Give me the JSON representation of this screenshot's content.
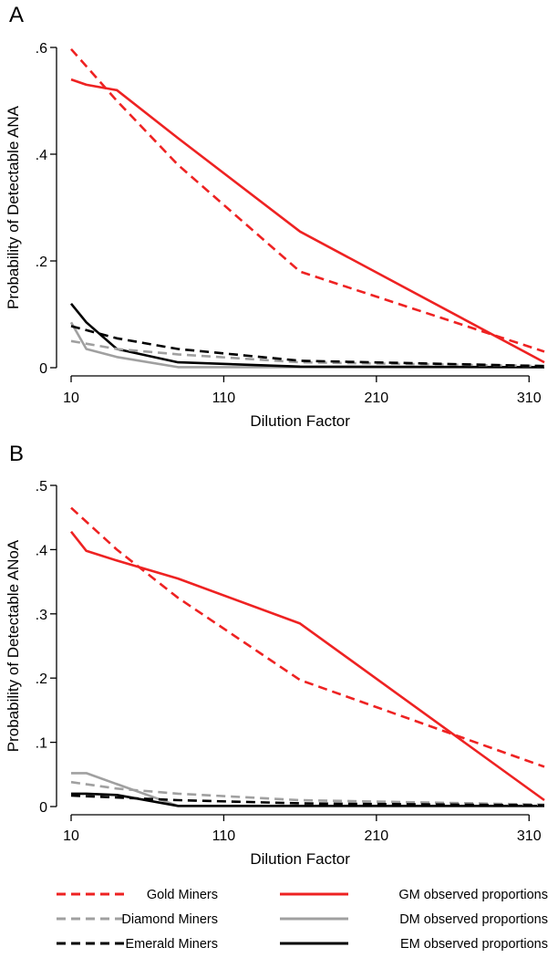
{
  "legend": [
    {
      "label": "Gold Miners",
      "color": "#ee2222",
      "dash": true
    },
    {
      "label": "GM observed proportions",
      "color": "#ee2222",
      "dash": false
    },
    {
      "label": "Diamond Miners",
      "color": "#a0a0a0",
      "dash": true
    },
    {
      "label": "DM observed proportions",
      "color": "#a0a0a0",
      "dash": false
    },
    {
      "label": "Emerald Miners",
      "color": "#000000",
      "dash": true
    },
    {
      "label": "EM observed proportions",
      "color": "#000000",
      "dash": false
    }
  ],
  "chart_data": [
    {
      "type": "line",
      "panel_label": "A",
      "xlabel": "Dilution Factor",
      "ylabel": "Probability of Detectable ANA",
      "xlim": [
        10,
        320
      ],
      "ylim": [
        0,
        0.6
      ],
      "xticks": [
        10,
        110,
        210,
        310
      ],
      "xtick_labels": [
        "10",
        "110",
        "210",
        "310"
      ],
      "yticks": [
        0,
        0.2,
        0.4,
        0.6
      ],
      "ytick_labels": [
        "0",
        ".2",
        ".4",
        ".6"
      ],
      "series": [
        {
          "name": "Gold Miners",
          "color": "#ee2222",
          "dash": true,
          "x": [
            10,
            40,
            80,
            160,
            320
          ],
          "y": [
            0.597,
            0.5,
            0.38,
            0.18,
            0.03
          ]
        },
        {
          "name": "Diamond Miners",
          "color": "#a0a0a0",
          "dash": true,
          "x": [
            10,
            40,
            80,
            160,
            320
          ],
          "y": [
            0.05,
            0.035,
            0.025,
            0.01,
            0.003
          ]
        },
        {
          "name": "Emerald Miners",
          "color": "#000000",
          "dash": true,
          "x": [
            10,
            40,
            80,
            160,
            320
          ],
          "y": [
            0.078,
            0.055,
            0.035,
            0.013,
            0.003
          ]
        },
        {
          "name": "GM observed proportions",
          "color": "#ee2222",
          "dash": false,
          "x": [
            10,
            20,
            40,
            80,
            160,
            320
          ],
          "y": [
            0.54,
            0.53,
            0.52,
            0.43,
            0.255,
            0.01
          ]
        },
        {
          "name": "DM observed proportions",
          "color": "#a0a0a0",
          "dash": false,
          "x": [
            10,
            20,
            40,
            80,
            160,
            320
          ],
          "y": [
            0.085,
            0.035,
            0.02,
            0.001,
            0.001,
            0.001
          ]
        },
        {
          "name": "EM observed proportions",
          "color": "#000000",
          "dash": false,
          "x": [
            10,
            20,
            40,
            80,
            160,
            320
          ],
          "y": [
            0.12,
            0.085,
            0.035,
            0.01,
            0.002,
            0.001
          ]
        }
      ]
    },
    {
      "type": "line",
      "panel_label": "B",
      "xlabel": "Dilution Factor",
      "ylabel": "Probability of Detectable ANoA",
      "xlim": [
        10,
        320
      ],
      "ylim": [
        0,
        0.5
      ],
      "xticks": [
        10,
        110,
        210,
        310
      ],
      "xtick_labels": [
        "10",
        "110",
        "210",
        "310"
      ],
      "yticks": [
        0,
        0.1,
        0.2,
        0.3,
        0.4,
        0.5
      ],
      "ytick_labels": [
        "0",
        ".1",
        ".2",
        ".3",
        ".4",
        ".5"
      ],
      "series": [
        {
          "name": "Gold Miners",
          "color": "#ee2222",
          "dash": true,
          "x": [
            10,
            40,
            80,
            160,
            320
          ],
          "y": [
            0.465,
            0.4,
            0.325,
            0.197,
            0.062
          ]
        },
        {
          "name": "Diamond Miners",
          "color": "#a0a0a0",
          "dash": true,
          "x": [
            10,
            40,
            80,
            160,
            320
          ],
          "y": [
            0.038,
            0.028,
            0.02,
            0.01,
            0.003
          ]
        },
        {
          "name": "Emerald Miners",
          "color": "#000000",
          "dash": true,
          "x": [
            10,
            40,
            80,
            160,
            320
          ],
          "y": [
            0.017,
            0.014,
            0.01,
            0.005,
            0.002
          ]
        },
        {
          "name": "GM observed proportions",
          "color": "#ee2222",
          "dash": false,
          "x": [
            10,
            20,
            40,
            80,
            160,
            320
          ],
          "y": [
            0.428,
            0.398,
            0.383,
            0.355,
            0.285,
            0.01
          ]
        },
        {
          "name": "DM observed proportions",
          "color": "#a0a0a0",
          "dash": false,
          "x": [
            10,
            20,
            40,
            80,
            160,
            320
          ],
          "y": [
            0.052,
            0.052,
            0.035,
            0.001,
            0.001,
            0.001
          ]
        },
        {
          "name": "EM observed proportions",
          "color": "#000000",
          "dash": false,
          "x": [
            10,
            20,
            40,
            80,
            160,
            320
          ],
          "y": [
            0.02,
            0.02,
            0.018,
            0.001,
            0.001,
            0.001
          ]
        }
      ]
    }
  ]
}
